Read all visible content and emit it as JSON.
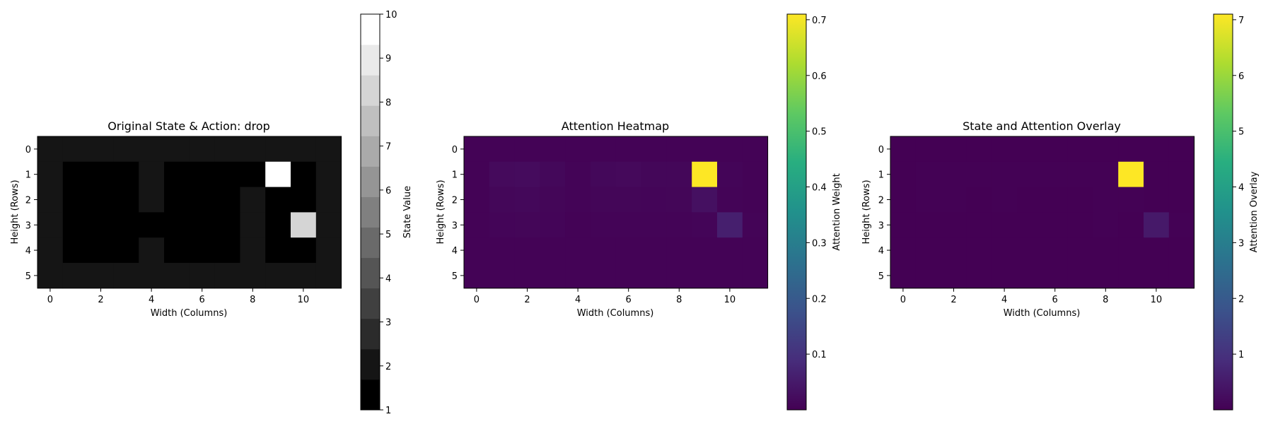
{
  "chart_data": [
    {
      "type": "heatmap",
      "title": "Original State & Action: drop",
      "xlabel": "Width (Columns)",
      "ylabel": "Height (Rows)",
      "xticks": [
        0,
        2,
        4,
        6,
        8,
        10
      ],
      "yticks": [
        0,
        1,
        2,
        3,
        4,
        5
      ],
      "colormap": "gray",
      "colorbar": {
        "label": "State Value",
        "min": 1,
        "max": 10,
        "ticks": [
          1,
          2,
          3,
          4,
          5,
          6,
          7,
          8,
          9,
          10
        ],
        "discrete_levels": 13
      },
      "values": [
        [
          2,
          2,
          2,
          2,
          2,
          2,
          2,
          2,
          2,
          2,
          2,
          2
        ],
        [
          2,
          1,
          1,
          1,
          2,
          1,
          1,
          1,
          1,
          10,
          1,
          2
        ],
        [
          2,
          1,
          1,
          1,
          2,
          1,
          1,
          1,
          2,
          1,
          1,
          2
        ],
        [
          2,
          1,
          1,
          1,
          1,
          1,
          1,
          1,
          2,
          1,
          8,
          2
        ],
        [
          2,
          1,
          1,
          1,
          2,
          1,
          1,
          1,
          2,
          1,
          1,
          2
        ],
        [
          2,
          2,
          2,
          2,
          2,
          2,
          2,
          2,
          2,
          2,
          2,
          2
        ]
      ]
    },
    {
      "type": "heatmap",
      "title": "Attention Heatmap",
      "xlabel": "Width (Columns)",
      "ylabel": "Height (Rows)",
      "xticks": [
        0,
        2,
        4,
        6,
        8,
        10
      ],
      "yticks": [
        0,
        1,
        2,
        3,
        4,
        5
      ],
      "colormap": "viridis",
      "colorbar": {
        "label": "Attention Weight",
        "min": 0.0,
        "max": 0.71,
        "ticks": [
          0.1,
          0.2,
          0.3,
          0.4,
          0.5,
          0.6,
          0.7
        ]
      },
      "values": [
        [
          0.004,
          0.004,
          0.004,
          0.004,
          0.004,
          0.004,
          0.004,
          0.004,
          0.004,
          0.004,
          0.004,
          0.004
        ],
        [
          0.004,
          0.018,
          0.02,
          0.014,
          0.006,
          0.014,
          0.016,
          0.012,
          0.012,
          0.71,
          0.008,
          0.004
        ],
        [
          0.004,
          0.012,
          0.014,
          0.01,
          0.006,
          0.01,
          0.01,
          0.008,
          0.01,
          0.03,
          0.006,
          0.004
        ],
        [
          0.004,
          0.008,
          0.01,
          0.008,
          0.004,
          0.006,
          0.006,
          0.006,
          0.006,
          0.008,
          0.06,
          0.006
        ],
        [
          0.004,
          0.004,
          0.004,
          0.004,
          0.004,
          0.004,
          0.004,
          0.004,
          0.004,
          0.004,
          0.004,
          0.004
        ],
        [
          0.004,
          0.004,
          0.004,
          0.004,
          0.004,
          0.004,
          0.004,
          0.004,
          0.004,
          0.004,
          0.004,
          0.004
        ]
      ]
    },
    {
      "type": "heatmap",
      "title": "State and Attention Overlay",
      "xlabel": "Width (Columns)",
      "ylabel": "Height (Rows)",
      "xticks": [
        0,
        2,
        4,
        6,
        8,
        10
      ],
      "yticks": [
        0,
        1,
        2,
        3,
        4,
        5
      ],
      "colormap": "viridis",
      "colorbar": {
        "label": "Attention Overlay",
        "min": 0.0,
        "max": 7.1,
        "ticks": [
          1,
          2,
          3,
          4,
          5,
          6,
          7
        ]
      },
      "values": [
        [
          0.008,
          0.008,
          0.008,
          0.008,
          0.008,
          0.008,
          0.008,
          0.008,
          0.008,
          0.008,
          0.008,
          0.008
        ],
        [
          0.008,
          0.018,
          0.02,
          0.014,
          0.012,
          0.014,
          0.016,
          0.012,
          0.012,
          7.1,
          0.008,
          0.008
        ],
        [
          0.008,
          0.012,
          0.014,
          0.01,
          0.012,
          0.01,
          0.01,
          0.008,
          0.02,
          0.03,
          0.006,
          0.008
        ],
        [
          0.008,
          0.008,
          0.01,
          0.008,
          0.004,
          0.006,
          0.006,
          0.006,
          0.012,
          0.008,
          0.48,
          0.012
        ],
        [
          0.008,
          0.004,
          0.004,
          0.004,
          0.008,
          0.004,
          0.004,
          0.004,
          0.008,
          0.004,
          0.004,
          0.008
        ],
        [
          0.008,
          0.008,
          0.008,
          0.008,
          0.008,
          0.008,
          0.008,
          0.008,
          0.008,
          0.008,
          0.008,
          0.008
        ]
      ]
    }
  ]
}
